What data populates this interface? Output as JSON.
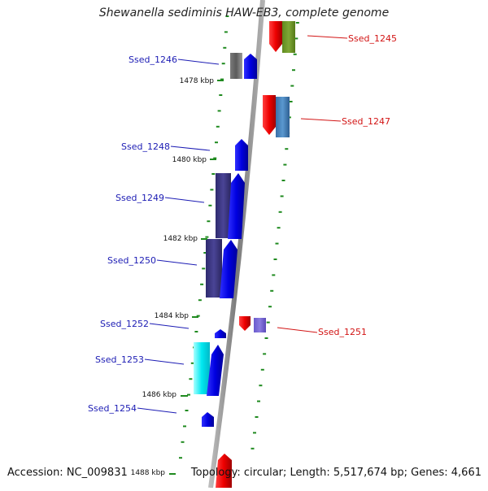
{
  "title": "Shewanella sediminis HAW-EB3, complete genome",
  "accession": "Accession: NC_009831",
  "topology": "Topology: circular; Length: 5,517,674 bp; Genes: 4,661",
  "colors": {
    "backbone": "#8c8c8c",
    "label_blue": "#1c1cb4",
    "label_red": "#d21414",
    "tick_green": "#1f8a1f"
  },
  "genes_left": [
    {
      "label": "Ssed_1246"
    },
    {
      "label": "Ssed_1248"
    },
    {
      "label": "Ssed_1249"
    },
    {
      "label": "Ssed_1250"
    },
    {
      "label": "Ssed_1252"
    },
    {
      "label": "Ssed_1253"
    },
    {
      "label": "Ssed_1254"
    }
  ],
  "genes_right": [
    {
      "label": "Ssed_1245"
    },
    {
      "label": "Ssed_1247"
    },
    {
      "label": "Ssed_1251"
    }
  ],
  "kbp_marks": [
    "1478 kbp",
    "1480 kbp",
    "1482 kbp",
    "1484 kbp",
    "1486 kbp",
    "1488 kbp"
  ]
}
